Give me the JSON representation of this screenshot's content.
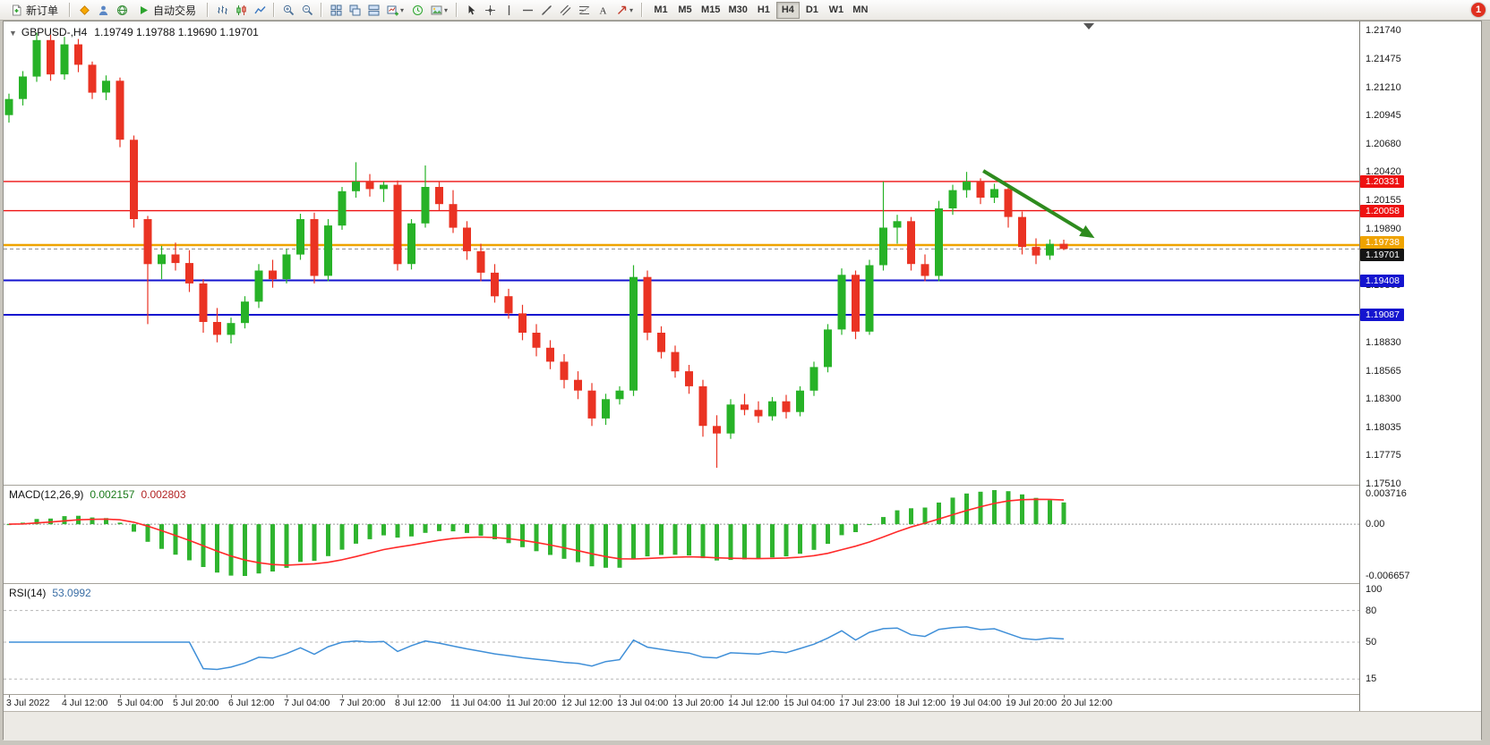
{
  "toolbar": {
    "new_order_label": "新订单",
    "auto_trading_label": "自动交易",
    "timeframes": [
      "M1",
      "M5",
      "M15",
      "M30",
      "H1",
      "H4",
      "D1",
      "W1",
      "MN"
    ],
    "active_timeframe": "H4",
    "notification_badge": "1"
  },
  "chart": {
    "title": "GBPUSD-,H4",
    "ohlc_line": "1.19749 1.19788 1.19690 1.19701",
    "up_color": "#27b227",
    "down_color": "#ea3323",
    "price_axis_labels": [
      "1.21740",
      "1.21475",
      "1.21210",
      "1.20945",
      "1.20680",
      "1.20420",
      "1.20155",
      "1.19890",
      "1.19625",
      "1.19360",
      "1.19095",
      "1.18830",
      "1.18565",
      "1.18300",
      "1.18035",
      "1.17775",
      "1.17510"
    ],
    "time_axis_labels": [
      "3 Jul 2022",
      "4 Jul 12:00",
      "5 Jul 04:00",
      "5 Jul 20:00",
      "6 Jul 12:00",
      "7 Jul 04:00",
      "7 Jul 20:00",
      "8 Jul 12:00",
      "11 Jul 04:00",
      "11 Jul 20:00",
      "12 Jul 12:00",
      "13 Jul 04:00",
      "13 Jul 20:00",
      "14 Jul 12:00",
      "15 Jul 04:00",
      "17 Jul 23:00",
      "18 Jul 12:00",
      "19 Jul 04:00",
      "19 Jul 20:00",
      "20 Jul 12:00"
    ],
    "levels": [
      {
        "label": "1.20331",
        "price": 1.20331,
        "color": "#ee1111",
        "width": 1.4
      },
      {
        "label": "1.20058",
        "price": 1.20058,
        "color": "#ee1111",
        "width": 1.4
      },
      {
        "label": "1.19738",
        "price": 1.19738,
        "color": "#efa300",
        "width": 2.4
      },
      {
        "label": "1.19408",
        "price": 1.19408,
        "color": "#1414cf",
        "width": 2
      },
      {
        "label": "1.19087",
        "price": 1.19087,
        "color": "#1414cf",
        "width": 2
      }
    ],
    "bid": {
      "label": "1.19701",
      "price": 1.19701,
      "color": "#141414"
    },
    "arrow": {
      "from_candle": 70.2,
      "from_price": 1.2043,
      "to_candle": 78.0,
      "to_price": 1.1982,
      "color": "#2e8b1e"
    }
  },
  "macd": {
    "title": "MACD(12,26,9)",
    "value_main": "0.002157",
    "value_signal": "0.002803",
    "axis_labels": {
      "top": "0.003716",
      "zero": "0.00",
      "bottom": "-0.006657"
    },
    "histogram_color": "#2fb42f",
    "signal_color": "#ff2a2a",
    "params": [
      12,
      26,
      9
    ]
  },
  "rsi": {
    "title": "RSI(14)",
    "value": "53.0992",
    "axis_labels": [
      "100",
      "80",
      "50",
      "15"
    ],
    "axis_values": [
      100,
      80,
      50,
      15
    ],
    "levels": [
      80,
      50,
      15
    ],
    "line_color": "#3f8fd8",
    "params": [
      14
    ]
  },
  "chart_data": [
    {
      "type": "candlestick",
      "symbol": "GBPUSD-",
      "timeframe": "H4",
      "ylim": [
        1.1751,
        1.2174
      ],
      "x_labels": [
        "3 Jul 2022",
        "4 Jul 12:00",
        "5 Jul 04:00",
        "5 Jul 20:00",
        "6 Jul 12:00",
        "7 Jul 04:00",
        "7 Jul 20:00",
        "8 Jul 12:00",
        "11 Jul 04:00",
        "11 Jul 20:00",
        "12 Jul 12:00",
        "13 Jul 04:00",
        "13 Jul 20:00",
        "14 Jul 12:00",
        "15 Jul 04:00",
        "17 Jul 23:00",
        "18 Jul 12:00",
        "19 Jul 04:00",
        "19 Jul 20:00",
        "20 Jul 12:00"
      ],
      "horizontal_levels": [
        1.20331,
        1.20058,
        1.19738,
        1.19408,
        1.19087
      ],
      "last_ohlc": [
        1.19749,
        1.19788,
        1.1969,
        1.19701
      ],
      "ohlc": [
        [
          1.2095,
          1.2115,
          1.2088,
          1.211
        ],
        [
          1.211,
          1.2136,
          1.2104,
          1.2131
        ],
        [
          1.2131,
          1.2172,
          1.2126,
          1.2165
        ],
        [
          1.2165,
          1.217,
          1.2127,
          1.2133
        ],
        [
          1.2133,
          1.2168,
          1.2128,
          1.2161
        ],
        [
          1.2161,
          1.2166,
          1.2135,
          1.2142
        ],
        [
          1.2142,
          1.2145,
          1.211,
          1.2116
        ],
        [
          1.2116,
          1.2132,
          1.2109,
          1.2127
        ],
        [
          1.2127,
          1.213,
          1.2065,
          1.2072
        ],
        [
          1.2072,
          1.2076,
          1.199,
          1.1998
        ],
        [
          1.1998,
          1.2001,
          1.19,
          1.1956
        ],
        [
          1.1956,
          1.1973,
          1.1942,
          1.1965
        ],
        [
          1.1965,
          1.1976,
          1.195,
          1.1957
        ],
        [
          1.1957,
          1.1969,
          1.193,
          1.1938
        ],
        [
          1.1938,
          1.1942,
          1.1892,
          1.1902
        ],
        [
          1.1902,
          1.1915,
          1.1883,
          1.189
        ],
        [
          1.189,
          1.1906,
          1.1882,
          1.1901
        ],
        [
          1.1901,
          1.1926,
          1.1896,
          1.1921
        ],
        [
          1.1921,
          1.1956,
          1.1915,
          1.195
        ],
        [
          1.195,
          1.196,
          1.1934,
          1.1942
        ],
        [
          1.1942,
          1.197,
          1.1938,
          1.1965
        ],
        [
          1.1965,
          1.2003,
          1.196,
          1.1998
        ],
        [
          1.1998,
          1.2004,
          1.1938,
          1.1945
        ],
        [
          1.1945,
          1.1998,
          1.194,
          1.1992
        ],
        [
          1.1992,
          1.2028,
          1.1988,
          1.2024
        ],
        [
          1.2024,
          1.2051,
          1.2018,
          1.2033
        ],
        [
          1.2033,
          1.204,
          1.2019,
          1.2026
        ],
        [
          1.2026,
          1.2033,
          1.2014,
          1.203
        ],
        [
          1.203,
          1.2034,
          1.195,
          1.1956
        ],
        [
          1.1956,
          1.1998,
          1.1951,
          1.1994
        ],
        [
          1.1994,
          1.2048,
          1.199,
          1.2028
        ],
        [
          1.2028,
          1.2033,
          1.2006,
          1.2012
        ],
        [
          1.2012,
          1.2025,
          1.1985,
          1.199
        ],
        [
          1.199,
          1.1996,
          1.196,
          1.1968
        ],
        [
          1.1968,
          1.1975,
          1.194,
          1.1948
        ],
        [
          1.1948,
          1.1956,
          1.192,
          1.1926
        ],
        [
          1.1926,
          1.1933,
          1.1905,
          1.191
        ],
        [
          1.191,
          1.1918,
          1.1885,
          1.1892
        ],
        [
          1.1892,
          1.19,
          1.187,
          1.1878
        ],
        [
          1.1878,
          1.1885,
          1.1858,
          1.1865
        ],
        [
          1.1865,
          1.1872,
          1.184,
          1.1848
        ],
        [
          1.1848,
          1.1856,
          1.183,
          1.1838
        ],
        [
          1.1838,
          1.1845,
          1.1805,
          1.1812
        ],
        [
          1.1812,
          1.1835,
          1.1806,
          1.183
        ],
        [
          1.183,
          1.1842,
          1.1825,
          1.1838
        ],
        [
          1.1838,
          1.1955,
          1.1833,
          1.1944
        ],
        [
          1.1944,
          1.195,
          1.1885,
          1.1892
        ],
        [
          1.1892,
          1.1898,
          1.1868,
          1.1874
        ],
        [
          1.1874,
          1.188,
          1.185,
          1.1856
        ],
        [
          1.1856,
          1.1862,
          1.1835,
          1.1842
        ],
        [
          1.1842,
          1.1848,
          1.1795,
          1.1805
        ],
        [
          1.1805,
          1.1815,
          1.1766,
          1.1798
        ],
        [
          1.1798,
          1.183,
          1.1793,
          1.1825
        ],
        [
          1.1825,
          1.1835,
          1.1815,
          1.182
        ],
        [
          1.182,
          1.1828,
          1.1808,
          1.1814
        ],
        [
          1.1814,
          1.1832,
          1.181,
          1.1828
        ],
        [
          1.1828,
          1.1834,
          1.1812,
          1.1818
        ],
        [
          1.1818,
          1.1842,
          1.1814,
          1.1838
        ],
        [
          1.1838,
          1.1865,
          1.1833,
          1.186
        ],
        [
          1.186,
          1.19,
          1.1855,
          1.1895
        ],
        [
          1.1895,
          1.1952,
          1.189,
          1.1946
        ],
        [
          1.1946,
          1.195,
          1.1886,
          1.1893
        ],
        [
          1.1893,
          1.196,
          1.189,
          1.1955
        ],
        [
          1.1955,
          1.2033,
          1.195,
          1.199
        ],
        [
          1.199,
          1.2002,
          1.1975,
          1.1996
        ],
        [
          1.1996,
          1.2,
          1.195,
          1.1956
        ],
        [
          1.1956,
          1.1965,
          1.194,
          1.1945
        ],
        [
          1.1945,
          1.2015,
          1.194,
          1.2008
        ],
        [
          1.2008,
          1.203,
          1.2002,
          1.2025
        ],
        [
          1.2025,
          1.2042,
          1.2018,
          1.2033
        ],
        [
          1.2033,
          1.2036,
          1.2012,
          1.2018
        ],
        [
          1.2018,
          1.2031,
          1.2013,
          1.2026
        ],
        [
          1.2026,
          1.203,
          1.199,
          1.2
        ],
        [
          1.2,
          1.2005,
          1.1965,
          1.1972
        ],
        [
          1.1972,
          1.198,
          1.1956,
          1.1964
        ],
        [
          1.1964,
          1.1979,
          1.196,
          1.19749
        ],
        [
          1.19749,
          1.19788,
          1.1969,
          1.19701
        ]
      ]
    },
    {
      "type": "bar+line",
      "title": "MACD(12,26,9)",
      "derived": "histogram = EMA12 - EMA26 of ohlc closes; signal line = EMA9 of histogram",
      "current_values": [
        0.002157,
        0.002803
      ],
      "ylim": [
        -0.006657,
        0.003716
      ]
    },
    {
      "type": "line",
      "title": "RSI(14)",
      "derived": "RSI(14) of ohlc closes",
      "current_value": 53.0992,
      "levels": [
        80,
        50,
        15
      ],
      "axis_ticks": [
        100,
        80,
        50,
        15
      ]
    }
  ]
}
